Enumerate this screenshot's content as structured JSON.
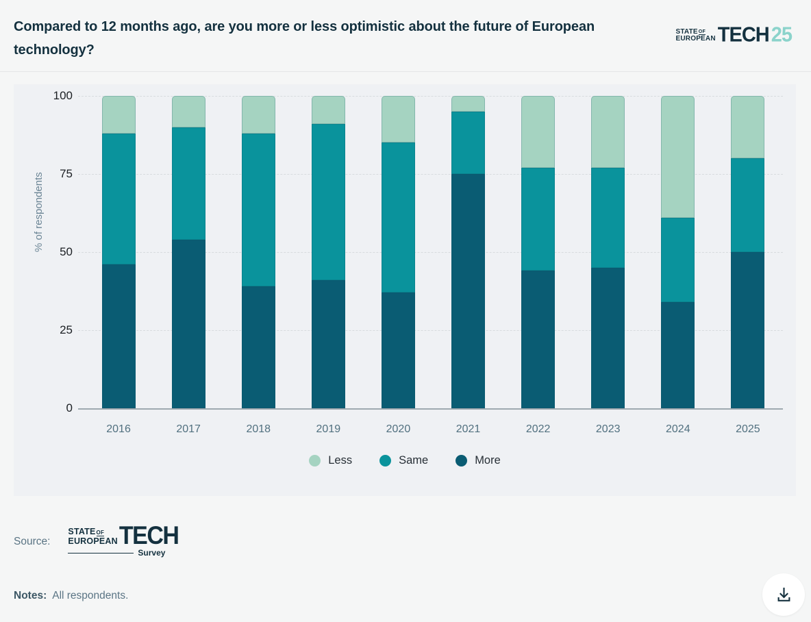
{
  "header": {
    "title": "Compared to 12 months ago, are you more or less optimistic about the future of European technology?",
    "logo": {
      "state": "STATE",
      "of": "OF",
      "european": "EUROPEAN",
      "tech": "TECH",
      "year": "25"
    }
  },
  "chart_data": {
    "type": "bar",
    "stacked": true,
    "categories": [
      "2016",
      "2017",
      "2018",
      "2019",
      "2020",
      "2021",
      "2022",
      "2023",
      "2024",
      "2025"
    ],
    "series": [
      {
        "name": "Less",
        "color": "#a5d3c1",
        "values": [
          12,
          10,
          12,
          9,
          15,
          5,
          23,
          23,
          39,
          20
        ]
      },
      {
        "name": "Same",
        "color": "#0a939c",
        "values": [
          42,
          36,
          49,
          50,
          48,
          20,
          33,
          32,
          27,
          30
        ]
      },
      {
        "name": "More",
        "color": "#0a5c73",
        "values": [
          46,
          54,
          39,
          41,
          37,
          75,
          44,
          45,
          34,
          50
        ]
      }
    ],
    "ylabel": "% of respondents",
    "yticks": [
      0,
      25,
      50,
      75,
      100
    ],
    "ylim": [
      0,
      100
    ],
    "grid": "horizontal-dashed",
    "legend_position": "bottom"
  },
  "source": {
    "label": "Source:",
    "logo": {
      "state": "STATE",
      "of": "OF",
      "european": "EUROPEAN",
      "tech": "TECH",
      "survey": "Survey"
    }
  },
  "notes": {
    "label": "Notes:",
    "text": "All respondents."
  },
  "download": {
    "icon": "download-icon"
  }
}
